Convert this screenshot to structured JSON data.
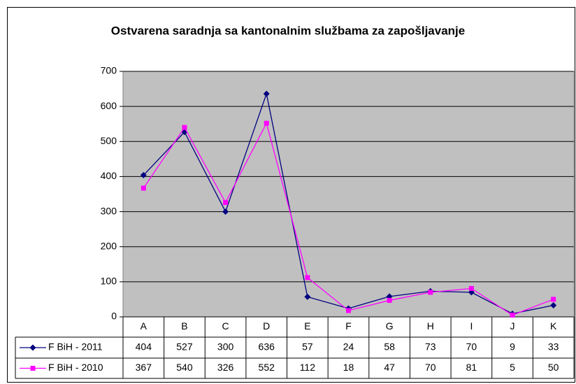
{
  "chart_data": {
    "type": "line",
    "title": "Ostvarena saradnja sa kantonalnim službama za zapošljavanje",
    "categories": [
      "A",
      "B",
      "C",
      "D",
      "E",
      "F",
      "G",
      "H",
      "I",
      "J",
      "K"
    ],
    "series": [
      {
        "name": "F BiH - 2011",
        "color": "#000080",
        "marker": "diamond",
        "values": [
          404,
          527,
          300,
          636,
          57,
          24,
          58,
          73,
          70,
          9,
          33
        ]
      },
      {
        "name": "F BiH - 2010",
        "color": "#ff00ff",
        "marker": "square",
        "values": [
          367,
          540,
          326,
          552,
          112,
          18,
          47,
          70,
          81,
          5,
          50
        ]
      }
    ],
    "ylim": [
      0,
      700
    ],
    "yticks": [
      0,
      100,
      200,
      300,
      400,
      500,
      600,
      700
    ],
    "grid": true,
    "plot_background": "#c0c0c0"
  }
}
